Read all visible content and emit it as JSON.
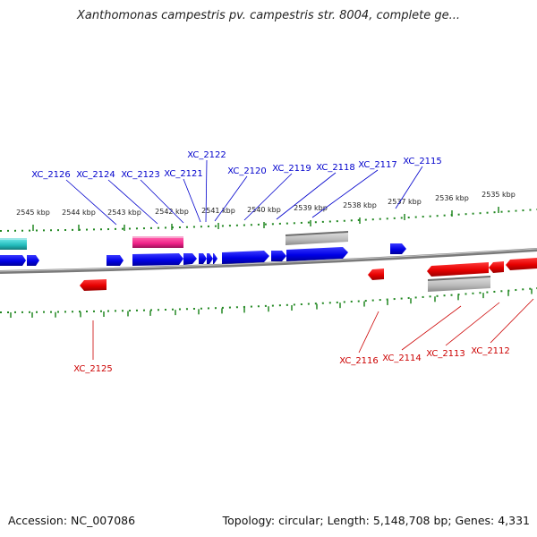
{
  "title": "Xanthomonas campestris pv. campestris str. 8004, complete ge...",
  "footer": {
    "accession": "Accession: NC_007086",
    "summary": "Topology: circular; Length: 5,148,708 bp; Genes: 4,331"
  },
  "colors": {
    "forward_gene": "#0000ee",
    "reverse_gene": "#ee0000",
    "forward_label": "#0000cc",
    "reverse_label": "#cc0000",
    "cds_pink": "#ee2288",
    "cds_cyan": "#22bbbb",
    "feature_gray": "#b8b8b8",
    "backbone": "#888888",
    "tick": "#228822"
  },
  "ruler_ticks": [
    {
      "label": "2545 kbp"
    },
    {
      "label": "2544 kbp"
    },
    {
      "label": "2543 kbp"
    },
    {
      "label": "2542 kbp"
    },
    {
      "label": "2541 kbp"
    },
    {
      "label": "2540 kbp"
    },
    {
      "label": "2539 kbp"
    },
    {
      "label": "2538 kbp"
    },
    {
      "label": "2537 kbp"
    },
    {
      "label": "2536 kbp"
    },
    {
      "label": "2535 kbp"
    }
  ],
  "forward_labels": [
    {
      "label": "XC_2126"
    },
    {
      "label": "XC_2124"
    },
    {
      "label": "XC_2123"
    },
    {
      "label": "XC_2121"
    },
    {
      "label": "XC_2122"
    },
    {
      "label": "XC_2120"
    },
    {
      "label": "XC_2119"
    },
    {
      "label": "XC_2118"
    },
    {
      "label": "XC_2117"
    },
    {
      "label": "XC_2115"
    }
  ],
  "reverse_labels": [
    {
      "label": "XC_2125"
    },
    {
      "label": "XC_2116"
    },
    {
      "label": "XC_2114"
    },
    {
      "label": "XC_2113"
    },
    {
      "label": "XC_2112"
    }
  ]
}
